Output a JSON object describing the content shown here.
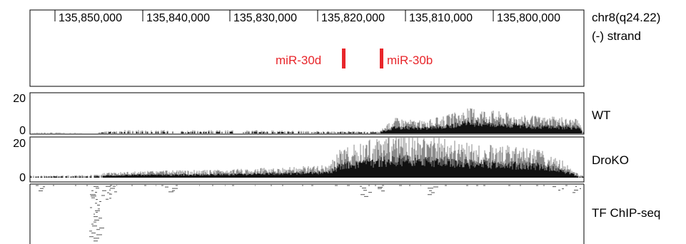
{
  "ruler": {
    "coordinates": [
      "135,850,000",
      "135,840,000",
      "135,830,000",
      "135,820,000",
      "135,810,000",
      "135,800,000"
    ],
    "location": "chr8(q24.22)",
    "strand": "(-) strand"
  },
  "genes": [
    {
      "name": "miR-30d",
      "color": "#e8262b"
    },
    {
      "name": "miR-30b",
      "color": "#e8262b"
    }
  ],
  "tracks": [
    {
      "id": "wt",
      "name": "WT",
      "scale_max": "20",
      "scale_min": "0",
      "profile": [
        [
          0.0,
          0.0
        ],
        [
          0.02,
          0.2
        ],
        [
          0.12,
          0.0
        ],
        [
          0.14,
          0.8
        ],
        [
          0.18,
          1.0
        ],
        [
          0.26,
          0.9
        ],
        [
          0.4,
          0.9
        ],
        [
          0.5,
          0.8
        ],
        [
          0.54,
          0.6
        ],
        [
          0.63,
          0.6
        ],
        [
          0.66,
          4.5
        ],
        [
          0.71,
          3.5
        ],
        [
          0.76,
          5.5
        ],
        [
          0.8,
          7.5
        ],
        [
          0.84,
          6.5
        ],
        [
          0.9,
          5.0
        ],
        [
          0.96,
          4.5
        ],
        [
          0.99,
          4.0
        ],
        [
          1.0,
          0.0
        ]
      ]
    },
    {
      "id": "drokov",
      "name": "DroKO",
      "scale_max": "20",
      "scale_min": "0",
      "profile": [
        [
          0.0,
          0.6
        ],
        [
          0.12,
          0.8
        ],
        [
          0.14,
          1.5
        ],
        [
          0.24,
          2.0
        ],
        [
          0.34,
          2.2
        ],
        [
          0.44,
          2.8
        ],
        [
          0.54,
          3.5
        ],
        [
          0.56,
          8.0
        ],
        [
          0.62,
          11.0
        ],
        [
          0.68,
          12.5
        ],
        [
          0.74,
          11.0
        ],
        [
          0.8,
          9.5
        ],
        [
          0.86,
          9.0
        ],
        [
          0.92,
          8.0
        ],
        [
          0.96,
          5.0
        ],
        [
          0.99,
          1.0
        ],
        [
          1.0,
          0.5
        ]
      ]
    },
    {
      "id": "tfchip",
      "name": "TF ChIP-seq"
    }
  ],
  "colors": {
    "signal_dark": "#111111",
    "signal_light": "#8a8a8a",
    "frame": "#000000",
    "gene": "#e8262b"
  }
}
